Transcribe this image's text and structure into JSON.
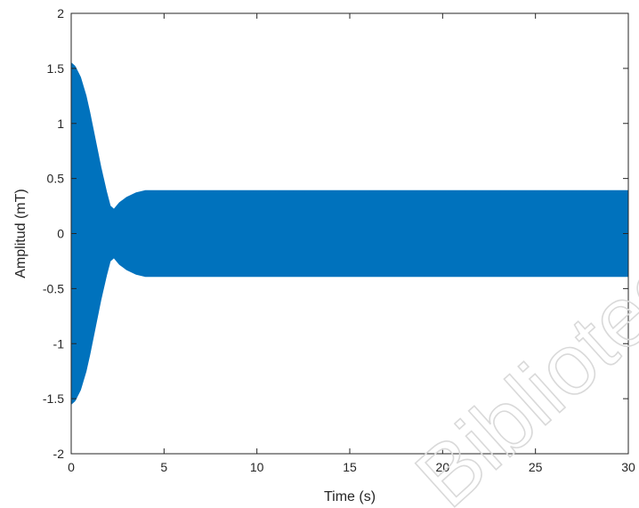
{
  "chart_data": {
    "type": "area",
    "title": "",
    "xlabel": "Time (s)",
    "ylabel": "Amplitud (mT)",
    "xlim": [
      0,
      30
    ],
    "ylim": [
      -2,
      2
    ],
    "xticks": [
      0,
      5,
      10,
      15,
      20,
      25,
      30
    ],
    "xtick_labels": [
      "0",
      "5",
      "10",
      "15",
      "20",
      "25",
      "30"
    ],
    "yticks": [
      2,
      1.5,
      1,
      0.5,
      0,
      -0.5,
      -1,
      -1.5,
      -2
    ],
    "ytick_labels": [
      "2",
      "1.5",
      "1",
      "0.5",
      "0",
      "-0.5",
      "-1",
      "-1.5",
      "-2"
    ],
    "grid": false,
    "legend": "none",
    "series": [
      {
        "color": "#0072BD",
        "x": [
          0,
          0.2,
          0.5,
          0.8,
          1.0,
          1.3,
          1.6,
          1.9,
          2.1,
          2.3,
          2.6,
          3.0,
          3.5,
          4.0,
          6,
          10,
          15,
          20,
          25,
          30
        ],
        "envelope_upper": [
          1.55,
          1.52,
          1.42,
          1.25,
          1.1,
          0.85,
          0.6,
          0.38,
          0.25,
          0.22,
          0.28,
          0.33,
          0.37,
          0.39,
          0.39,
          0.39,
          0.39,
          0.39,
          0.39,
          0.39
        ],
        "envelope_lower": [
          -1.55,
          -1.52,
          -1.42,
          -1.25,
          -1.1,
          -0.85,
          -0.6,
          -0.38,
          -0.25,
          -0.22,
          -0.28,
          -0.33,
          -0.37,
          -0.39,
          -0.39,
          -0.39,
          -0.39,
          -0.39,
          -0.39,
          -0.39
        ]
      }
    ],
    "watermark": "Bibliotec"
  }
}
